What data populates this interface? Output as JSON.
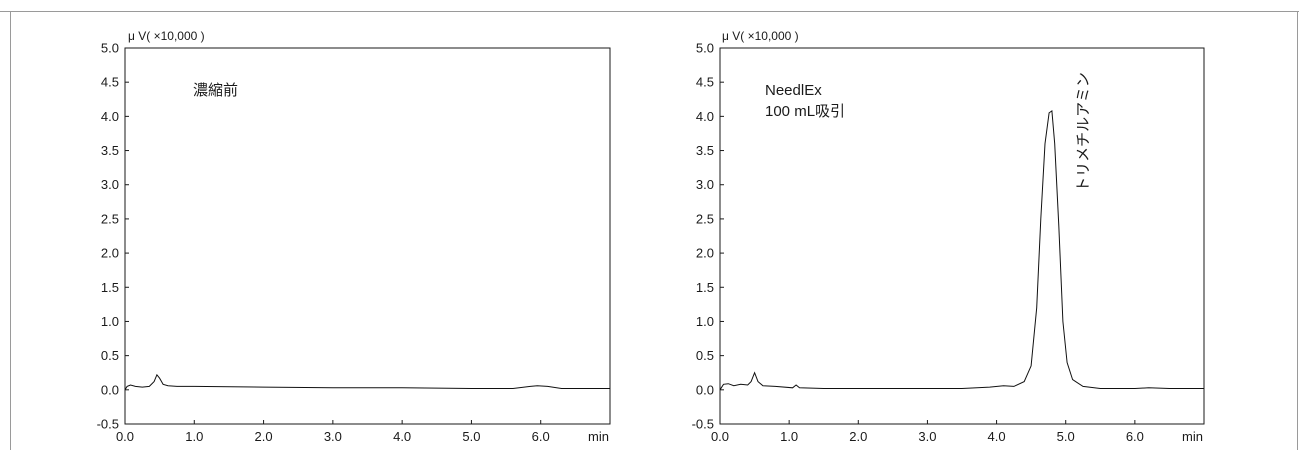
{
  "chart_data": [
    {
      "type": "line",
      "title": "",
      "unit_label": "μ V( ×10,000 )",
      "annotation": "濃縮前",
      "annotation_lines": [
        "濃縮前"
      ],
      "xlabel": "min",
      "ylabel": "",
      "xlim": [
        0.0,
        7.0
      ],
      "ylim": [
        -0.5,
        5.0
      ],
      "xticks": [
        "0.0",
        "1.0",
        "2.0",
        "3.0",
        "4.0",
        "5.0",
        "6.0"
      ],
      "yticks": [
        "5.0",
        "4.5",
        "4.0",
        "3.5",
        "3.0",
        "2.5",
        "2.0",
        "1.5",
        "1.0",
        "0.5",
        "0.0",
        "-0.5"
      ],
      "grid": false,
      "series": [
        {
          "x": [
            0.0,
            0.03,
            0.08,
            0.15,
            0.25,
            0.35,
            0.42,
            0.46,
            0.5,
            0.55,
            0.62,
            0.75,
            1.0,
            2.0,
            3.0,
            4.0,
            5.0,
            5.6,
            5.85,
            5.95,
            6.1,
            6.3,
            7.0
          ],
          "y": [
            0.0,
            0.05,
            0.07,
            0.05,
            0.04,
            0.05,
            0.12,
            0.22,
            0.17,
            0.08,
            0.06,
            0.05,
            0.05,
            0.04,
            0.03,
            0.03,
            0.02,
            0.02,
            0.05,
            0.06,
            0.05,
            0.02,
            0.02
          ]
        }
      ]
    },
    {
      "type": "line",
      "title": "",
      "unit_label": "μ V( ×10,000 )",
      "annotation": "NeedlEx 100 mL吸引",
      "annotation_lines": [
        "NeedlEx",
        "100 mL吸引"
      ],
      "peak_label": "トリメチルアミン",
      "xlabel": "min",
      "ylabel": "",
      "xlim": [
        0.0,
        7.0
      ],
      "ylim": [
        -0.5,
        5.0
      ],
      "xticks": [
        "0.0",
        "1.0",
        "2.0",
        "3.0",
        "4.0",
        "5.0",
        "6.0"
      ],
      "yticks": [
        "5.0",
        "4.5",
        "4.0",
        "3.5",
        "3.0",
        "2.5",
        "2.0",
        "1.5",
        "1.0",
        "0.5",
        "0.0",
        "-0.5"
      ],
      "grid": false,
      "series": [
        {
          "x": [
            0.0,
            0.05,
            0.12,
            0.2,
            0.3,
            0.4,
            0.45,
            0.5,
            0.55,
            0.62,
            0.8,
            1.05,
            1.1,
            1.15,
            1.5,
            2.5,
            3.5,
            3.9,
            4.1,
            4.25,
            4.4,
            4.5,
            4.58,
            4.64,
            4.7,
            4.76,
            4.8,
            4.84,
            4.9,
            4.96,
            5.02,
            5.1,
            5.25,
            5.5,
            6.0,
            6.2,
            6.5,
            7.0
          ],
          "y": [
            0.0,
            0.08,
            0.09,
            0.06,
            0.08,
            0.07,
            0.12,
            0.25,
            0.12,
            0.06,
            0.05,
            0.03,
            0.07,
            0.03,
            0.02,
            0.02,
            0.02,
            0.04,
            0.06,
            0.05,
            0.12,
            0.35,
            1.2,
            2.5,
            3.6,
            4.05,
            4.08,
            3.6,
            2.4,
            1.0,
            0.4,
            0.15,
            0.05,
            0.02,
            0.02,
            0.03,
            0.02,
            0.02
          ]
        }
      ]
    }
  ]
}
